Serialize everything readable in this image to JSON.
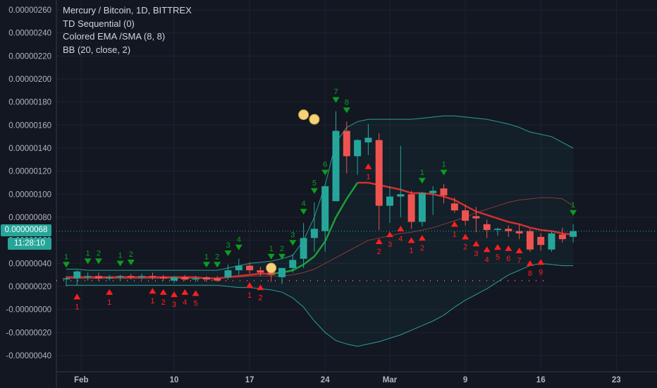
{
  "legend": {
    "title": "Mercury / Bitcoin, 1D, BITTREX",
    "ind1": "TD Sequential (0)",
    "ind2": "Colored EMA /SMA (8, 8)",
    "ind3": "BB (20, close, 2)"
  },
  "last_price_tag": "0.00000068",
  "countdown": "11:28:10",
  "colors": {
    "up": "#26a69a",
    "down": "#ef5350",
    "ema": "#d32f2f",
    "ema_up": "#1b9e3a",
    "bb": "#2a9d93",
    "bb_mid": "#8a3a3a",
    "td_buy": "#ff1f1f",
    "td_sell": "#0a9e1f",
    "dot": "#f5d27a"
  },
  "chart_data": {
    "type": "candlestick",
    "y_tick_labels": [
      "0.00000260",
      "0.00000240",
      "0.00000220",
      "0.00000200",
      "0.00000180",
      "0.00000160",
      "0.00000140",
      "0.00000120",
      "0.00000100",
      "0.00000080",
      "0.00000060",
      "0.00000040",
      "0.00000020",
      "-0.00000000",
      "-0.00000020",
      "-0.00000040"
    ],
    "ylim": [
      -5e-07,
      2.65e-06
    ],
    "x_tick_labels": [
      "Feb",
      "10",
      "17",
      "24",
      "Mar",
      "9",
      "16",
      "23"
    ],
    "x_tick_index": [
      1,
      10,
      17,
      24,
      30,
      37,
      44,
      51
    ],
    "grid": true,
    "candles": [
      [
        2.7e-07,
        2.9e-07,
        2e-07,
        2.7e-07
      ],
      [
        2.7e-07,
        3.4e-07,
        2.1e-07,
        3.3e-07
      ],
      [
        2.9e-07,
        3.2e-07,
        2.5e-07,
        2.9e-07
      ],
      [
        2.9e-07,
        3.2e-07,
        2.5e-07,
        2.7e-07
      ],
      [
        2.7e-07,
        3e-07,
        2.5e-07,
        2.8e-07
      ],
      [
        2.8e-07,
        3e-07,
        2.5e-07,
        2.9e-07
      ],
      [
        2.9e-07,
        3.1e-07,
        2.6e-07,
        2.8e-07
      ],
      [
        2.8e-07,
        3.1e-07,
        2.6e-07,
        2.9e-07
      ],
      [
        2.9e-07,
        3.2e-07,
        2.6e-07,
        2.8e-07
      ],
      [
        2.8e-07,
        3e-07,
        2.5e-07,
        2.7e-07
      ],
      [
        2.5e-07,
        2.9e-07,
        2.3e-07,
        2.8e-07
      ],
      [
        2.8e-07,
        3e-07,
        2.5e-07,
        2.6e-07
      ],
      [
        2.6e-07,
        2.9e-07,
        2.4e-07,
        2.7e-07
      ],
      [
        2.8e-07,
        2.9e-07,
        2.4e-07,
        2.6e-07
      ],
      [
        2.7e-07,
        2.9e-07,
        2.4e-07,
        2.5e-07
      ],
      [
        2.8e-07,
        3.9e-07,
        2.6e-07,
        3.4e-07
      ],
      [
        3.4e-07,
        4.4e-07,
        3e-07,
        3.8e-07
      ],
      [
        3.8e-07,
        4.1e-07,
        3.1e-07,
        3.4e-07
      ],
      [
        3.4e-07,
        3.7e-07,
        2.9e-07,
        3.2e-07
      ],
      [
        3.2e-07,
        3.6e-07,
        2.4e-07,
        3e-07
      ],
      [
        2.8e-07,
        3.6e-07,
        2.2e-07,
        3.6e-07
      ],
      [
        3.6e-07,
        4.8e-07,
        3.2e-07,
        4.3e-07
      ],
      [
        4.4e-07,
        7.5e-07,
        3.6e-07,
        6.2e-07
      ],
      [
        6.2e-07,
        9.3e-07,
        5e-07,
        7e-07
      ],
      [
        6.8e-07,
        1.09e-06,
        5e-07,
        1.07e-06
      ],
      [
        9.4e-07,
        1.72e-06,
        9.4e-07,
        1.55e-06
      ],
      [
        1.55e-06,
        1.63e-06,
        1.18e-06,
        1.33e-06
      ],
      [
        1.33e-06,
        1.48e-06,
        1.17e-06,
        1.47e-06
      ],
      [
        1.45e-06,
        1.61e-06,
        1.34e-06,
        1.49e-06
      ],
      [
        1.47e-06,
        1.53e-06,
        6.9e-07,
        9e-07
      ],
      [
        9e-07,
        1.07e-06,
        7.5e-07,
        9.8e-07
      ],
      [
        9.8e-07,
        1.42e-06,
        8e-07,
        1e-06
      ],
      [
        1e-06,
        1.03e-06,
        7e-07,
        7.6e-07
      ],
      [
        7.6e-07,
        1.02e-06,
        7.2e-07,
        1.01e-06
      ],
      [
        1.01e-06,
        1.07e-06,
        8.2e-07,
        1.03e-06
      ],
      [
        1.05e-06,
        1.09e-06,
        9.2e-07,
        9.9e-07
      ],
      [
        9.2e-07,
        9.7e-07,
        8.4e-07,
        8.6e-07
      ],
      [
        8.6e-07,
        9.1e-07,
        7.3e-07,
        7.7e-07
      ],
      [
        8.1e-07,
        8.9e-07,
        6.7e-07,
        7.9e-07
      ],
      [
        7.4e-07,
        7.8e-07,
        6.2e-07,
        6.9e-07
      ],
      [
        6.9e-07,
        7.1e-07,
        6.4e-07,
        7e-07
      ],
      [
        7e-07,
        7.3e-07,
        6.3e-07,
        6.8e-07
      ],
      [
        6.8e-07,
        7.4e-07,
        6.1e-07,
        6.6e-07
      ],
      [
        6.8e-07,
        7e-07,
        5e-07,
        5.2e-07
      ],
      [
        6.3e-07,
        6.6e-07,
        5.1e-07,
        5.6e-07
      ],
      [
        5.2e-07,
        6.8e-07,
        5e-07,
        6.6e-07
      ],
      [
        6.5e-07,
        7.1e-07,
        5.8e-07,
        6.1e-07
      ],
      [
        6.3e-07,
        7.4e-07,
        5.8e-07,
        6.8e-07
      ]
    ],
    "ema": [
      2.8e-07,
      2.8e-07,
      2.8e-07,
      2.8e-07,
      2.8e-07,
      2.8e-07,
      2.8e-07,
      2.8e-07,
      2.8e-07,
      2.8e-07,
      2.8e-07,
      2.8e-07,
      2.8e-07,
      2.7e-07,
      2.7e-07,
      2.8e-07,
      2.9e-07,
      3e-07,
      3.1e-07,
      3.1e-07,
      3.2e-07,
      3.4e-07,
      3.9e-07,
      4.6e-07,
      5.9e-07,
      8e-07,
      9.6e-07,
      1.1e-06,
      1.1e-06,
      1.08e-06,
      1.06e-06,
      1.04e-06,
      1.01e-06,
      1.01e-06,
      1e-06,
      9.8e-07,
      9.5e-07,
      9e-07,
      8.5e-07,
      8.2e-07,
      7.9e-07,
      7.6e-07,
      7.4e-07,
      7.1e-07,
      6.9e-07,
      6.8e-07,
      6.6e-07,
      6.5e-07
    ],
    "bb_upper": [
      3.5e-07,
      3.5e-07,
      3.4e-07,
      3.4e-07,
      3.4e-07,
      3.4e-07,
      3.4e-07,
      3.4e-07,
      3.4e-07,
      3.4e-07,
      3.4e-07,
      3.4e-07,
      3.4e-07,
      3.4e-07,
      3.4e-07,
      3.6e-07,
      3.8e-07,
      4e-07,
      4.1e-07,
      4.2e-07,
      4.4e-07,
      4.7e-07,
      6e-07,
      8e-07,
      1.08e-06,
      1.45e-06,
      1.58e-06,
      1.63e-06,
      1.65e-06,
      1.65e-06,
      1.65e-06,
      1.65e-06,
      1.65e-06,
      1.66e-06,
      1.67e-06,
      1.68e-06,
      1.68e-06,
      1.67e-06,
      1.66e-06,
      1.65e-06,
      1.63e-06,
      1.61e-06,
      1.58e-06,
      1.54e-06,
      1.52e-06,
      1.5e-06,
      1.45e-06,
      1.4e-06
    ],
    "bb_mid": [
      2.7e-07,
      2.7e-07,
      2.7e-07,
      2.7e-07,
      2.7e-07,
      2.7e-07,
      2.7e-07,
      2.7e-07,
      2.7e-07,
      2.7e-07,
      2.7e-07,
      2.7e-07,
      2.7e-07,
      2.7e-07,
      2.7e-07,
      2.8e-07,
      2.8e-07,
      2.9e-07,
      2.9e-07,
      2.9e-07,
      2.9e-07,
      3e-07,
      3.2e-07,
      3.5e-07,
      4e-07,
      4.5e-07,
      5e-07,
      5.5e-07,
      6e-07,
      6.2e-07,
      6.4e-07,
      6.6e-07,
      6.7e-07,
      6.9e-07,
      7.1e-07,
      7.4e-07,
      7.7e-07,
      8e-07,
      8.4e-07,
      8.7e-07,
      9e-07,
      9.3e-07,
      9.5e-07,
      9.6e-07,
      9.7e-07,
      9.7e-07,
      9.6e-07,
      9e-07
    ],
    "bb_lower": [
      2.1e-07,
      2.1e-07,
      2.1e-07,
      2.1e-07,
      2.1e-07,
      2.1e-07,
      2.1e-07,
      2.1e-07,
      2.1e-07,
      2.1e-07,
      2.1e-07,
      2.1e-07,
      2.1e-07,
      2.1e-07,
      2.1e-07,
      2e-07,
      1.9e-07,
      1.9e-07,
      1.8e-07,
      1.7e-07,
      1.5e-07,
      1e-07,
      2e-08,
      -1e-07,
      -2e-07,
      -2.7e-07,
      -3e-07,
      -3.2e-07,
      -3e-07,
      -2.8e-07,
      -2.5e-07,
      -2.2e-07,
      -1.8e-07,
      -1.4e-07,
      -1e-07,
      -5e-08,
      2e-08,
      8e-08,
      1.3e-07,
      1.8e-07,
      2.4e-07,
      3e-07,
      3.4e-07,
      3.8e-07,
      4e-07,
      3.9e-07,
      3.8e-07,
      3.8e-07
    ],
    "td_buy_labels": [
      {
        "i": 1,
        "label": "1"
      },
      {
        "i": 4,
        "label": "1"
      },
      {
        "i": 8,
        "label": "1"
      },
      {
        "i": 9,
        "label": "2"
      },
      {
        "i": 10,
        "label": "3"
      },
      {
        "i": 11,
        "label": "4"
      },
      {
        "i": 12,
        "label": "5"
      },
      {
        "i": 17,
        "label": "1"
      },
      {
        "i": 18,
        "label": "2"
      },
      {
        "i": 28,
        "label": "1"
      },
      {
        "i": 29,
        "label": "2"
      },
      {
        "i": 30,
        "label": "3"
      },
      {
        "i": 31,
        "label": "4"
      },
      {
        "i": 32,
        "label": "1"
      },
      {
        "i": 33,
        "label": "2"
      },
      {
        "i": 36,
        "label": "1"
      },
      {
        "i": 37,
        "label": "2"
      },
      {
        "i": 38,
        "label": "3"
      },
      {
        "i": 39,
        "label": "4"
      },
      {
        "i": 40,
        "label": "5"
      },
      {
        "i": 41,
        "label": "6"
      },
      {
        "i": 42,
        "label": "7"
      },
      {
        "i": 43,
        "label": "8"
      },
      {
        "i": 44,
        "label": "9"
      }
    ],
    "td_sell_labels": [
      {
        "i": 0,
        "label": "1"
      },
      {
        "i": 2,
        "label": "1"
      },
      {
        "i": 3,
        "label": "2"
      },
      {
        "i": 5,
        "label": "1"
      },
      {
        "i": 6,
        "label": "2"
      },
      {
        "i": 13,
        "label": "1"
      },
      {
        "i": 14,
        "label": "2"
      },
      {
        "i": 15,
        "label": "3"
      },
      {
        "i": 16,
        "label": "4"
      },
      {
        "i": 19,
        "label": "1"
      },
      {
        "i": 20,
        "label": "2"
      },
      {
        "i": 21,
        "label": "3"
      },
      {
        "i": 22,
        "label": "4"
      },
      {
        "i": 23,
        "label": "5"
      },
      {
        "i": 24,
        "label": "6"
      },
      {
        "i": 25,
        "label": "7"
      },
      {
        "i": 26,
        "label": "8"
      },
      {
        "i": 33,
        "label": "1"
      },
      {
        "i": 35,
        "label": "1"
      },
      {
        "i": 47,
        "label": "1"
      }
    ],
    "circles": [
      {
        "i": 22,
        "y": 1.69e-06
      },
      {
        "i": 23,
        "y": 1.65e-06
      },
      {
        "i": 19,
        "y": 3.6e-07
      }
    ]
  }
}
